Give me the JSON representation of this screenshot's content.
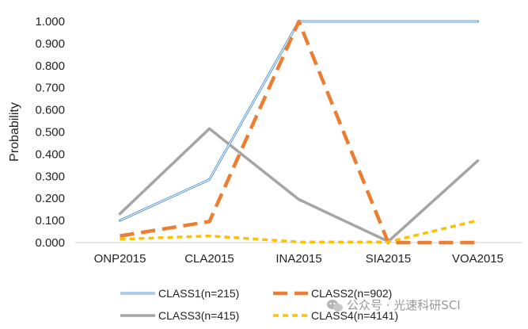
{
  "chart_data": {
    "type": "line",
    "title": "",
    "xlabel": "",
    "ylabel": "Probability",
    "ylim": [
      0,
      1
    ],
    "yticks": [
      "0.000",
      "0.100",
      "0.200",
      "0.300",
      "0.400",
      "0.500",
      "0.600",
      "0.700",
      "0.800",
      "0.900",
      "1.000"
    ],
    "categories": [
      "ONP2015",
      "CLA2015",
      "INA2015",
      "SIA2015",
      "VOA2015"
    ],
    "grid": false,
    "legend_position": "bottom",
    "series": [
      {
        "name": "CLASS1(n=215)",
        "values": [
          0.1,
          0.285,
          1.0,
          1.0,
          1.0
        ],
        "color": "#5b9bd5",
        "style": "solid-double"
      },
      {
        "name": "CLASS2(n=902)",
        "values": [
          0.03,
          0.095,
          1.0,
          0.0,
          0.0
        ],
        "color": "#ed7d31",
        "style": "long-dash"
      },
      {
        "name": "CLASS3(n=415)",
        "values": [
          0.13,
          0.515,
          0.195,
          0.005,
          0.37
        ],
        "color": "#a5a5a5",
        "style": "solid"
      },
      {
        "name": "CLASS4(n=4141)",
        "values": [
          0.015,
          0.03,
          0.003,
          0.003,
          0.1
        ],
        "color": "#ffc000",
        "style": "short-dash"
      }
    ]
  },
  "watermark": {
    "icon": "wechat-icon",
    "text": "公众号 · 光速科研SCI"
  }
}
